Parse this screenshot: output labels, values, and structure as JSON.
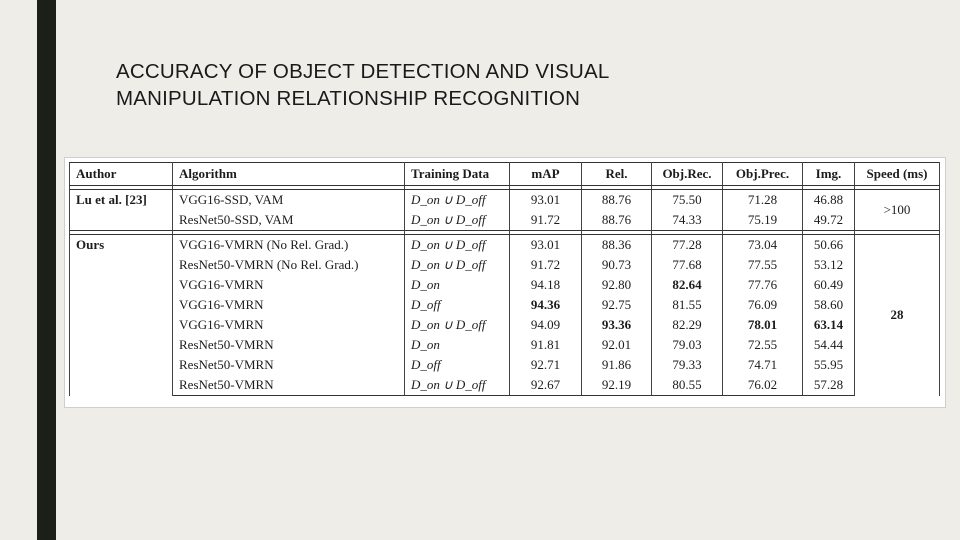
{
  "slide": {
    "title_line1": "ACCURACY OF OBJECT DETECTION AND VISUAL",
    "title_line2": "MANIPULATION RELATIONSHIP RECOGNITION"
  },
  "table": {
    "headers": [
      "Author",
      "Algorithm",
      "Training Data",
      "mAP",
      "Rel.",
      "Obj.Rec.",
      "Obj.Prec.",
      "Img.",
      "Speed (ms)"
    ],
    "groups": [
      {
        "author": "Lu et al. [23]",
        "speed": ">100",
        "rows": [
          {
            "algorithm": "VGG16-SSD, VAM",
            "data": "D_on ∪ D_off",
            "map": "93.01",
            "rel": "88.76",
            "objrec": "75.50",
            "objprec": "71.28",
            "img": "46.88"
          },
          {
            "algorithm": "ResNet50-SSD, VAM",
            "data": "D_on ∪ D_off",
            "map": "91.72",
            "rel": "88.76",
            "objrec": "74.33",
            "objprec": "75.19",
            "img": "49.72"
          }
        ]
      },
      {
        "author": "Ours",
        "speed": "28",
        "rows": [
          {
            "algorithm": "VGG16-VMRN (No Rel. Grad.)",
            "data": "D_on ∪ D_off",
            "map": "93.01",
            "rel": "88.36",
            "objrec": "77.28",
            "objprec": "73.04",
            "img": "50.66"
          },
          {
            "algorithm": "ResNet50-VMRN (No Rel. Grad.)",
            "data": "D_on ∪ D_off",
            "map": "91.72",
            "rel": "90.73",
            "objrec": "77.68",
            "objprec": "77.55",
            "img": "53.12"
          },
          {
            "algorithm": "VGG16-VMRN",
            "data": "D_on",
            "map": "94.18",
            "rel": "92.80",
            "objrec": "82.64",
            "objprec": "77.76",
            "img": "60.49"
          },
          {
            "algorithm": "VGG16-VMRN",
            "data": "D_off",
            "map": "94.36",
            "rel": "92.75",
            "objrec": "81.55",
            "objprec": "76.09",
            "img": "58.60"
          },
          {
            "algorithm": "VGG16-VMRN",
            "data": "D_on ∪ D_off",
            "map": "94.09",
            "rel": "93.36",
            "objrec": "82.29",
            "objprec": "78.01",
            "img": "63.14"
          },
          {
            "algorithm": "ResNet50-VMRN",
            "data": "D_on",
            "map": "91.81",
            "rel": "92.01",
            "objrec": "79.03",
            "objprec": "72.55",
            "img": "54.44"
          },
          {
            "algorithm": "ResNet50-VMRN",
            "data": "D_off",
            "map": "92.71",
            "rel": "91.86",
            "objrec": "79.33",
            "objprec": "74.71",
            "img": "55.95"
          },
          {
            "algorithm": "ResNet50-VMRN",
            "data": "D_on ∪ D_off",
            "map": "92.67",
            "rel": "92.19",
            "objrec": "80.55",
            "objprec": "76.02",
            "img": "57.28"
          }
        ]
      }
    ],
    "bold_cells": [
      {
        "group": 1,
        "row": 2,
        "col": "objrec"
      },
      {
        "group": 1,
        "row": 3,
        "col": "map"
      },
      {
        "group": 1,
        "row": 4,
        "col": "rel"
      },
      {
        "group": 1,
        "row": 4,
        "col": "objprec"
      },
      {
        "group": 1,
        "row": 4,
        "col": "img"
      }
    ]
  }
}
